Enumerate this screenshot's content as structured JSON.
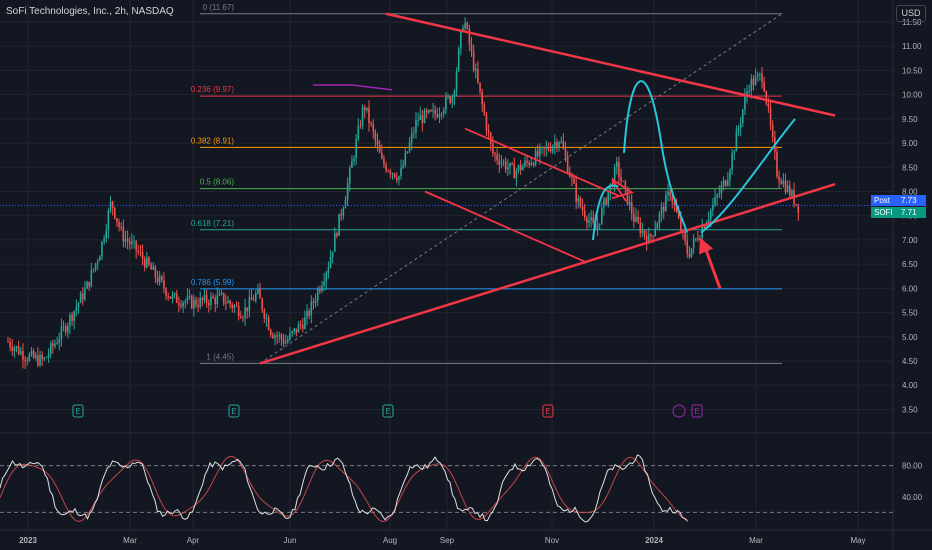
{
  "header": {
    "title": "SoFi Technologies, Inc., 2h, NASDAQ",
    "currency_button": "USD"
  },
  "colors": {
    "background": "#131722",
    "grid": "#1f2430",
    "axis_text": "#b2b5be",
    "candle_up": "#26a69a",
    "candle_down": "#ef5350",
    "drawing_red": "#f23645",
    "drawing_cyan": "#26c6da",
    "purple": "#9c27b0"
  },
  "chart_data": [
    {
      "type": "candlestick",
      "symbol": "SOFI",
      "interval": "2h",
      "exchange": "NASDAQ",
      "x_ticks": [
        "2023",
        "Mar",
        "Apr",
        "Jun",
        "Aug",
        "Sep",
        "Nov",
        "2024",
        "Mar",
        "May"
      ],
      "y_ticks": [
        3.5,
        4.0,
        4.5,
        5.0,
        5.5,
        6.0,
        6.5,
        7.0,
        7.5,
        8.0,
        8.5,
        9.0,
        9.5,
        10.0,
        10.5,
        11.0,
        11.5
      ],
      "ylim": [
        3.35,
        11.95
      ],
      "price_path": [
        {
          "t": 0,
          "p": 4.9
        },
        {
          "t": 0.5,
          "p": 4.6
        },
        {
          "t": 1,
          "p": 4.5
        },
        {
          "t": 1.6,
          "p": 5.2
        },
        {
          "t": 2.2,
          "p": 6.0
        },
        {
          "t": 2.6,
          "p": 6.8
        },
        {
          "t": 2.9,
          "p": 7.8
        },
        {
          "t": 3.2,
          "p": 7.1
        },
        {
          "t": 3.6,
          "p": 6.8
        },
        {
          "t": 4,
          "p": 6.4
        },
        {
          "t": 4.6,
          "p": 5.8
        },
        {
          "t": 5.2,
          "p": 5.7
        },
        {
          "t": 6,
          "p": 5.8
        },
        {
          "t": 6.6,
          "p": 5.5
        },
        {
          "t": 7,
          "p": 5.9
        },
        {
          "t": 7.4,
          "p": 5.1
        },
        {
          "t": 7.8,
          "p": 4.9
        },
        {
          "t": 8.4,
          "p": 5.4
        },
        {
          "t": 9,
          "p": 6.5
        },
        {
          "t": 9.5,
          "p": 8.0
        },
        {
          "t": 10,
          "p": 9.8
        },
        {
          "t": 10.5,
          "p": 8.6
        },
        {
          "t": 11,
          "p": 8.3
        },
        {
          "t": 11.5,
          "p": 9.5
        },
        {
          "t": 12,
          "p": 9.6
        },
        {
          "t": 12.5,
          "p": 10.0
        },
        {
          "t": 12.8,
          "p": 11.6
        },
        {
          "t": 13.2,
          "p": 10.2
        },
        {
          "t": 13.6,
          "p": 8.8
        },
        {
          "t": 14.2,
          "p": 8.4
        },
        {
          "t": 15,
          "p": 8.8
        },
        {
          "t": 15.5,
          "p": 9.1
        },
        {
          "t": 16,
          "p": 7.8
        },
        {
          "t": 16.5,
          "p": 7.2
        },
        {
          "t": 17.1,
          "p": 8.5
        },
        {
          "t": 17.6,
          "p": 7.4
        },
        {
          "t": 18,
          "p": 7.0
        },
        {
          "t": 18.6,
          "p": 8.0
        },
        {
          "t": 19.1,
          "p": 6.7
        },
        {
          "t": 19.6,
          "p": 7.4
        },
        {
          "t": 20.2,
          "p": 8.3
        },
        {
          "t": 20.8,
          "p": 10.2
        },
        {
          "t": 21.2,
          "p": 10.4
        },
        {
          "t": 21.6,
          "p": 8.4
        },
        {
          "t": 22.2,
          "p": 7.7
        }
      ],
      "last_price": 7.71,
      "post_price": 7.73,
      "fib_levels": [
        {
          "ratio": "0",
          "price": 11.67,
          "label": "0 (11.67)",
          "color": "#787b86"
        },
        {
          "ratio": "0.236",
          "price": 9.97,
          "label": "0.236 (9.97)",
          "color": "#f23645"
        },
        {
          "ratio": "0.382",
          "price": 8.91,
          "label": "0.382 (8.91)",
          "color": "#ff9800"
        },
        {
          "ratio": "0.5",
          "price": 8.06,
          "label": "0.5 (8.06)",
          "color": "#4caf50"
        },
        {
          "ratio": "0.618",
          "price": 7.21,
          "label": "0.618 (7.21)",
          "color": "#26a69a"
        },
        {
          "ratio": "0.786",
          "price": 5.99,
          "label": "0.786 (5.99)",
          "color": "#2196f3"
        },
        {
          "ratio": "1",
          "price": 4.45,
          "label": "1 (4.45)",
          "color": "#787b86"
        }
      ],
      "earnings_markers": [
        "E",
        "E",
        "E",
        "E",
        "E"
      ],
      "badges": [
        {
          "text": "Post",
          "value": "7.73",
          "color": "#2962ff"
        },
        {
          "text": "SOFI",
          "value": "7.71",
          "color": "#089981"
        }
      ]
    },
    {
      "type": "line",
      "name": "oscillator",
      "y_ticks": [
        80.0,
        40.0
      ],
      "ylim": [
        0,
        100
      ],
      "levels": [
        80,
        20
      ],
      "x_ticks": [
        "2023",
        "Mar",
        "Apr",
        "Jun",
        "Aug",
        "Sep",
        "Nov",
        "2024",
        "Mar",
        "May"
      ]
    }
  ]
}
